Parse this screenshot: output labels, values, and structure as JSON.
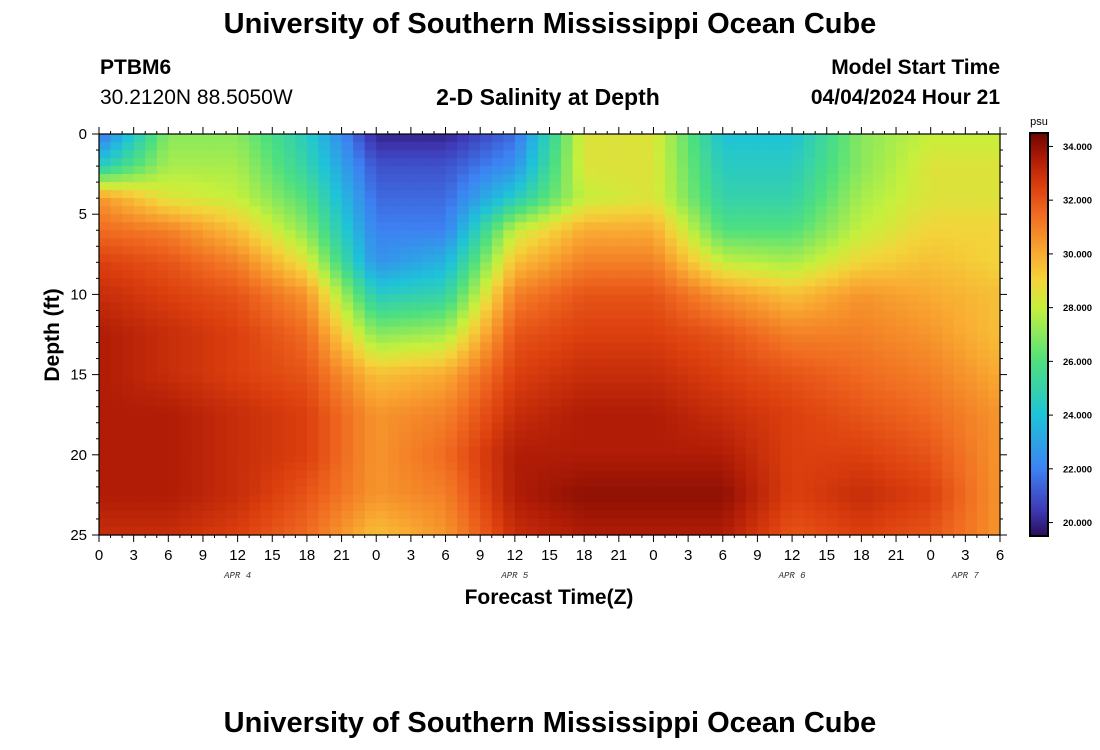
{
  "header": {
    "title": "University of Southern Mississippi Ocean Cube",
    "station_id": "PTBM6",
    "station_location": "30.2120N  88.5050W",
    "plot_title": "2-D Salinity at Depth",
    "model_label": "Model Start Time",
    "model_start": "04/04/2024 Hour 21"
  },
  "footer": {
    "title": "University of Southern Mississippi Ocean Cube"
  },
  "chart_data": {
    "type": "heatmap",
    "title": "2-D Salinity at Depth",
    "xlabel": "Forecast Time(Z)",
    "ylabel": "Depth (ft)",
    "x_unit": "hours since 2024-04-04 00Z",
    "xlim": [
      0,
      78
    ],
    "ylim": [
      0,
      25
    ],
    "y_inverted": true,
    "x_tick_values": [
      0,
      3,
      6,
      9,
      12,
      15,
      18,
      21,
      24,
      27,
      30,
      33,
      36,
      39,
      42,
      45,
      48,
      51,
      54,
      57,
      60,
      63,
      66,
      69,
      72,
      75,
      78
    ],
    "x_tick_labels": [
      "0",
      "3",
      "6",
      "9",
      "12",
      "15",
      "18",
      "21",
      "0",
      "3",
      "6",
      "9",
      "12",
      "15",
      "18",
      "21",
      "0",
      "3",
      "6",
      "9",
      "12",
      "15",
      "18",
      "21",
      "0",
      "3",
      "6"
    ],
    "y_tick_values": [
      0,
      5,
      10,
      15,
      20,
      25
    ],
    "y_tick_labels": [
      "0",
      "5",
      "10",
      "15",
      "20",
      "25"
    ],
    "date_labels": [
      {
        "x": 12,
        "text": "APR 4"
      },
      {
        "x": 36,
        "text": "APR 5"
      },
      {
        "x": 60,
        "text": "APR 6"
      },
      {
        "x": 75,
        "text": "APR 7"
      }
    ],
    "colorbar": {
      "unit": "psu",
      "min": 19.5,
      "max": 34.5,
      "tick_values": [
        20,
        22,
        24,
        26,
        28,
        30,
        32,
        34
      ],
      "tick_labels": [
        "20.000",
        "22.000",
        "24.000",
        "26.000",
        "28.000",
        "30.000",
        "32.000",
        "34.000"
      ],
      "stops": [
        {
          "v": 19.5,
          "c": "#2a0e5a"
        },
        {
          "v": 20.5,
          "c": "#3f3ab8"
        },
        {
          "v": 22.0,
          "c": "#3d82f2"
        },
        {
          "v": 24.0,
          "c": "#1ec3d8"
        },
        {
          "v": 26.0,
          "c": "#4ee07e"
        },
        {
          "v": 28.0,
          "c": "#c6f03c"
        },
        {
          "v": 29.0,
          "c": "#f3d43a"
        },
        {
          "v": 30.0,
          "c": "#f9ab32"
        },
        {
          "v": 31.5,
          "c": "#f06a20"
        },
        {
          "v": 32.5,
          "c": "#dc3f0e"
        },
        {
          "v": 33.5,
          "c": "#b01c06"
        },
        {
          "v": 34.5,
          "c": "#6e0502"
        }
      ]
    },
    "grid_x": [
      0,
      6,
      12,
      18,
      24,
      30,
      36,
      42,
      48,
      54,
      60,
      66,
      72,
      78
    ],
    "grid_y": [
      0,
      2,
      4,
      6,
      8,
      10,
      12.5,
      15,
      17.5,
      20,
      22.5,
      25
    ],
    "salinity_psu": [
      [
        21.5,
        27.0,
        27.0,
        24.5,
        20.0,
        20.0,
        21.5,
        28.5,
        28.5,
        24.0,
        24.0,
        27.0,
        28.0,
        28.0
      ],
      [
        24.5,
        27.5,
        27.5,
        25.0,
        21.0,
        21.0,
        22.5,
        28.5,
        28.5,
        24.5,
        24.5,
        27.0,
        28.5,
        28.5
      ],
      [
        30.5,
        28.5,
        28.0,
        26.0,
        21.5,
        21.5,
        24.5,
        28.0,
        28.5,
        25.0,
        25.0,
        27.5,
        28.5,
        28.5
      ],
      [
        31.5,
        31.0,
        29.5,
        27.0,
        22.0,
        22.0,
        28.0,
        30.0,
        30.0,
        26.0,
        26.0,
        28.0,
        29.0,
        29.0
      ],
      [
        32.5,
        32.0,
        31.0,
        28.5,
        22.5,
        23.5,
        29.5,
        31.0,
        31.0,
        28.0,
        27.5,
        29.0,
        29.5,
        29.0
      ],
      [
        33.0,
        32.5,
        32.0,
        30.5,
        24.5,
        25.0,
        31.0,
        32.0,
        32.0,
        30.5,
        29.5,
        30.5,
        30.0,
        29.5
      ],
      [
        33.5,
        33.0,
        32.5,
        31.5,
        27.0,
        27.5,
        32.0,
        32.5,
        32.5,
        32.0,
        31.0,
        31.0,
        30.5,
        29.5
      ],
      [
        33.5,
        33.0,
        32.5,
        32.0,
        29.5,
        30.0,
        32.5,
        33.0,
        33.0,
        32.5,
        32.0,
        31.5,
        31.0,
        30.0
      ],
      [
        33.5,
        33.5,
        33.0,
        32.5,
        30.5,
        31.0,
        33.0,
        33.5,
        33.5,
        33.0,
        32.5,
        32.0,
        31.5,
        30.5
      ],
      [
        33.5,
        33.5,
        33.0,
        32.5,
        30.5,
        31.5,
        33.5,
        33.5,
        33.5,
        33.5,
        32.5,
        32.5,
        32.0,
        30.5
      ],
      [
        33.5,
        33.5,
        33.0,
        32.0,
        30.5,
        31.0,
        33.5,
        34.0,
        34.0,
        34.0,
        32.5,
        33.0,
        32.5,
        30.5
      ],
      [
        33.0,
        33.0,
        32.5,
        31.5,
        29.5,
        30.5,
        33.0,
        33.5,
        33.5,
        33.5,
        32.0,
        32.5,
        32.0,
        30.5
      ]
    ]
  }
}
